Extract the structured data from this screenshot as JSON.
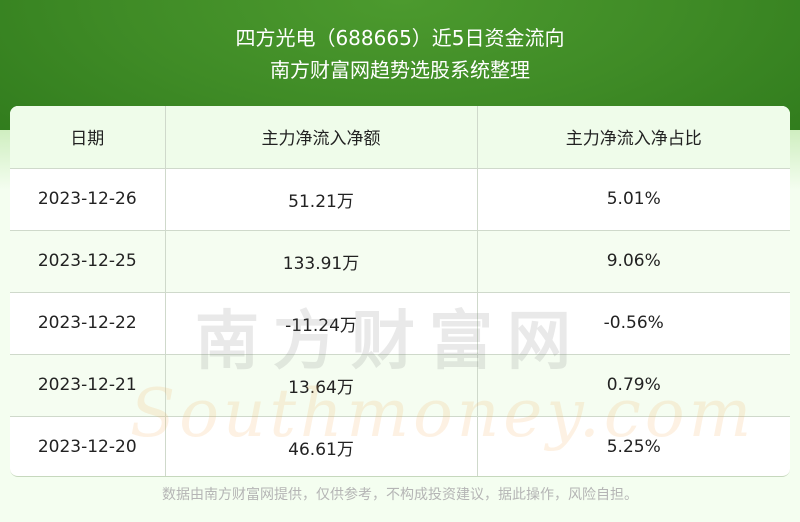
{
  "header": {
    "title": "四方光电（688665）近5日资金流向",
    "subtitle": "南方财富网趋势选股系统整理"
  },
  "table": {
    "columns": [
      "日期",
      "主力净流入净额",
      "主力净流入净占比"
    ],
    "rows": [
      [
        "2023-12-26",
        "51.21万",
        "5.01%"
      ],
      [
        "2023-12-25",
        "133.91万",
        "9.06%"
      ],
      [
        "2023-12-22",
        "-11.24万",
        "-0.56%"
      ],
      [
        "2023-12-21",
        "13.64万",
        "0.79%"
      ],
      [
        "2023-12-20",
        "46.61万",
        "5.25%"
      ]
    ]
  },
  "watermark": {
    "cn": "南方财富网",
    "en": "Southmoney.com"
  },
  "footer": "数据由南方财富网提供，仅供参考，不构成投资建议，据此操作，风险自担。",
  "colors": {
    "brand_green": "#3f8b26",
    "header_row": "#effcea",
    "alt_row": "#f5fdf1"
  }
}
